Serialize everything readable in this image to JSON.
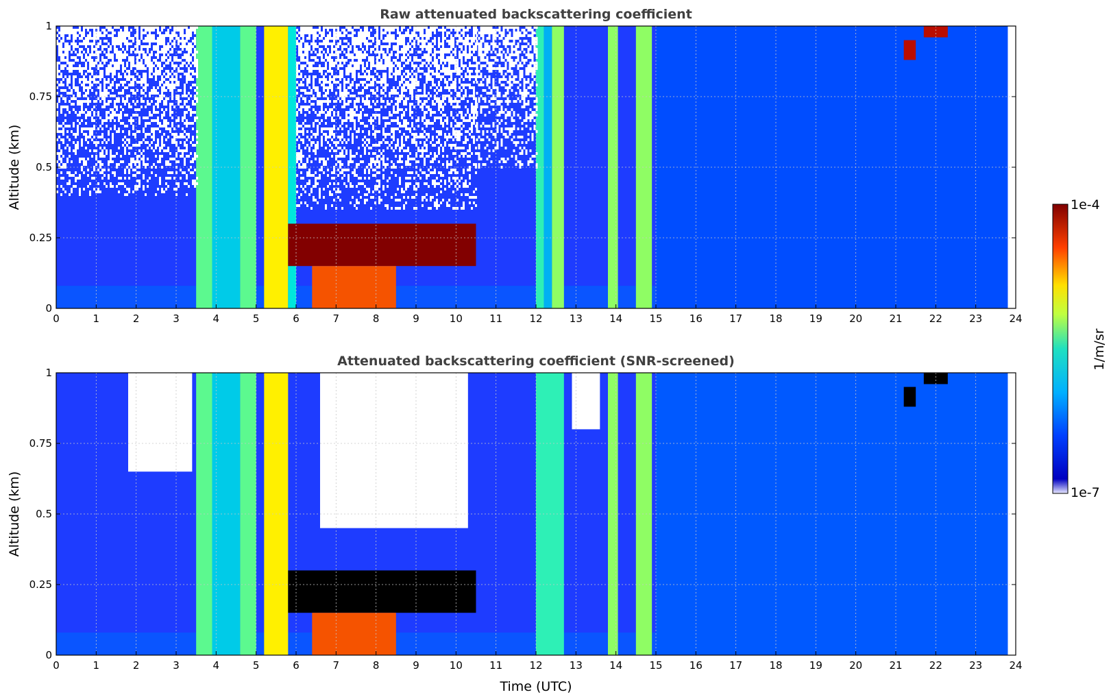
{
  "chart_data": [
    {
      "type": "heatmap",
      "title": "Raw attenuated backscattering coefficient",
      "xlabel": "",
      "ylabel": "Altitude (km)",
      "xlim": [
        0,
        24
      ],
      "ylim": [
        0,
        1
      ],
      "x_ticks": [
        "0",
        "1",
        "2",
        "3",
        "4",
        "5",
        "6",
        "7",
        "8",
        "9",
        "10",
        "11",
        "12",
        "13",
        "14",
        "15",
        "16",
        "17",
        "18",
        "19",
        "20",
        "21",
        "22",
        "23",
        "24"
      ],
      "y_ticks": [
        "0",
        "0.25",
        "0.5",
        "0.75",
        "1"
      ],
      "grid": true,
      "screened": false,
      "data_end_time": 23.8,
      "features": [
        {
          "kind": "column",
          "t0": 3.5,
          "t1": 3.9,
          "intensity": 0.55
        },
        {
          "kind": "column",
          "t0": 3.9,
          "t1": 4.6,
          "intensity": 0.4
        },
        {
          "kind": "column",
          "t0": 4.6,
          "t1": 5.0,
          "intensity": 0.55
        },
        {
          "kind": "column",
          "t0": 5.2,
          "t1": 5.8,
          "intensity": 0.7
        },
        {
          "kind": "column",
          "t0": 5.8,
          "t1": 6.0,
          "intensity": 0.45
        },
        {
          "kind": "column",
          "t0": 12.0,
          "t1": 12.2,
          "intensity": 0.5
        },
        {
          "kind": "column",
          "t0": 12.2,
          "t1": 12.4,
          "intensity": 0.35
        },
        {
          "kind": "column",
          "t0": 12.4,
          "t1": 12.7,
          "intensity": 0.6
        },
        {
          "kind": "column",
          "t0": 13.8,
          "t1": 14.05,
          "intensity": 0.6
        },
        {
          "kind": "column",
          "t0": 14.5,
          "t1": 14.9,
          "intensity": 0.6
        },
        {
          "kind": "column",
          "t0": 15.0,
          "t1": 23.8,
          "intensity": 0.18
        },
        {
          "kind": "layer",
          "t0": 5.8,
          "t1": 10.5,
          "h0": 0.15,
          "h1": 0.3,
          "intensity": 1.0
        },
        {
          "kind": "layer",
          "t0": 6.4,
          "t1": 8.5,
          "h0": 0.0,
          "h1": 0.15,
          "intensity": 0.85
        },
        {
          "kind": "layer",
          "t0": 21.2,
          "t1": 21.5,
          "h0": 0.88,
          "h1": 0.95,
          "intensity": 0.95
        },
        {
          "kind": "layer",
          "t0": 21.7,
          "t1": 22.3,
          "h0": 0.96,
          "h1": 1.0,
          "intensity": 0.95
        },
        {
          "kind": "noise",
          "t0": 0.0,
          "t1": 3.5,
          "h0": 0.4,
          "h1": 1.0
        },
        {
          "kind": "noise",
          "t0": 6.0,
          "t1": 10.5,
          "h0": 0.35,
          "h1": 1.0
        },
        {
          "kind": "noise",
          "t0": 10.5,
          "t1": 12.0,
          "h0": 0.5,
          "h1": 1.0
        }
      ]
    },
    {
      "type": "heatmap",
      "title": "Attenuated backscattering coefficient (SNR-screened)",
      "xlabel": "Time (UTC)",
      "ylabel": "Altitude (km)",
      "xlim": [
        0,
        24
      ],
      "ylim": [
        0,
        1
      ],
      "x_ticks": [
        "0",
        "1",
        "2",
        "3",
        "4",
        "5",
        "6",
        "7",
        "8",
        "9",
        "10",
        "11",
        "12",
        "13",
        "14",
        "15",
        "16",
        "17",
        "18",
        "19",
        "20",
        "21",
        "22",
        "23",
        "24"
      ],
      "y_ticks": [
        "0",
        "0.25",
        "0.5",
        "0.75",
        "1"
      ],
      "grid": true,
      "screened": true,
      "data_end_time": 23.8,
      "features": [
        {
          "kind": "column",
          "t0": 3.5,
          "t1": 3.9,
          "intensity": 0.55
        },
        {
          "kind": "column",
          "t0": 3.9,
          "t1": 4.6,
          "intensity": 0.4
        },
        {
          "kind": "column",
          "t0": 4.6,
          "t1": 5.0,
          "intensity": 0.55
        },
        {
          "kind": "column",
          "t0": 5.2,
          "t1": 5.8,
          "intensity": 0.7
        },
        {
          "kind": "column",
          "t0": 12.0,
          "t1": 12.7,
          "intensity": 0.5
        },
        {
          "kind": "column",
          "t0": 13.8,
          "t1": 14.05,
          "intensity": 0.6
        },
        {
          "kind": "column",
          "t0": 14.5,
          "t1": 14.9,
          "intensity": 0.6
        },
        {
          "kind": "column",
          "t0": 15.0,
          "t1": 23.8,
          "intensity": 0.2
        },
        {
          "kind": "layer",
          "t0": 5.8,
          "t1": 10.5,
          "h0": 0.15,
          "h1": 0.3,
          "intensity": 1.2
        },
        {
          "kind": "layer",
          "t0": 6.4,
          "t1": 8.5,
          "h0": 0.0,
          "h1": 0.15,
          "intensity": 0.85
        },
        {
          "kind": "layer",
          "t0": 21.2,
          "t1": 21.5,
          "h0": 0.88,
          "h1": 0.95,
          "intensity": 1.2
        },
        {
          "kind": "layer",
          "t0": 21.7,
          "t1": 22.3,
          "h0": 0.96,
          "h1": 1.0,
          "intensity": 1.2
        },
        {
          "kind": "masked",
          "t0": 1.8,
          "t1": 3.4,
          "h0": 0.65,
          "h1": 1.0
        },
        {
          "kind": "masked",
          "t0": 6.6,
          "t1": 10.3,
          "h0": 0.45,
          "h1": 1.0
        },
        {
          "kind": "masked",
          "t0": 12.9,
          "t1": 13.6,
          "h0": 0.8,
          "h1": 1.0
        }
      ]
    }
  ],
  "colorbar": {
    "label": "1/m/sr",
    "max_label": "1e-4",
    "min_label": "1e-7",
    "range": [
      1e-07,
      0.0001
    ],
    "scale": "log",
    "colormap": "jet"
  }
}
